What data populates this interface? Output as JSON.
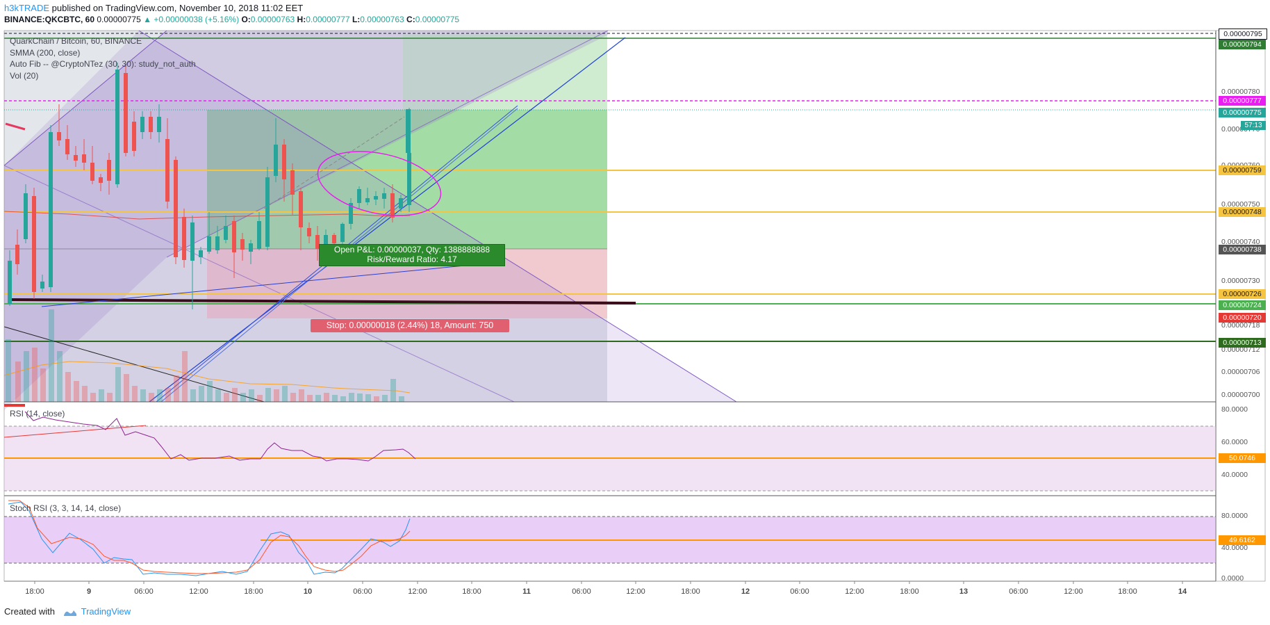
{
  "header": {
    "author": "h3kTRADE",
    "published": " published on TradingView.com, November 10, 2018 11:02 EET",
    "symbol": "BINANCE:QKCBTC, 60",
    "last": "0.00000775",
    "change": "▲ +0.00000038 (+5.16%)",
    "o_label": "O:",
    "o": "0.00000763",
    "h_label": "H:",
    "h": "0.00000777",
    "l_label": "L:",
    "l": "0.00000763",
    "c_label": "C:",
    "c": "0.00000775"
  },
  "legend": {
    "main": "QuarkChain / Bitcoin, 60, BINANCE",
    "smma": "SMMA (200, close)",
    "autofib": "Auto Fib -- @CryptoNTez (30, 30): study_not_auth",
    "vol": "Vol (20)",
    "rsi": "RSI (14, close)",
    "stoch": "Stoch RSI (3, 3, 14, 14, close)"
  },
  "position": {
    "pnl": "Open P&L: 0.00000037, Qty: 1388888888",
    "rr": "Risk/Reward Ratio: 4.17",
    "stop": "Stop: 0.00000018 (2.44%) 18, Amount: 750"
  },
  "price_axis": {
    "ticks": [
      "0.00000780",
      "0.00000770",
      "0.00000760",
      "0.00000750",
      "0.00000740",
      "0.00000730",
      "0.00000718",
      "0.00000712",
      "0.00000706",
      "0.00000700"
    ],
    "tags": [
      {
        "label": "0.00000795",
        "bg": "#ffffff",
        "fg": "#131722"
      },
      {
        "label": "0.00000794",
        "bg": "#2e7d32",
        "fg": "#ffffff"
      },
      {
        "label": "0.00000777",
        "bg": "#e91ef0",
        "fg": "#ffffff"
      },
      {
        "label": "0.00000775",
        "bg": "#26a69a",
        "fg": "#ffffff"
      },
      {
        "label": "0.00000759",
        "bg": "#f5c542",
        "fg": "#131722"
      },
      {
        "label": "0.00000748",
        "bg": "#f5c542",
        "fg": "#131722"
      },
      {
        "label": "0.00000738",
        "bg": "#555555",
        "fg": "#ffffff"
      },
      {
        "label": "0.00000726",
        "bg": "#f5c542",
        "fg": "#131722"
      },
      {
        "label": "0.00000724",
        "bg": "#4caf50",
        "fg": "#ffffff"
      },
      {
        "label": "0.00000720",
        "bg": "#e53935",
        "fg": "#ffffff"
      },
      {
        "label": "0.00000713",
        "bg": "#2e6b1f",
        "fg": "#ffffff"
      }
    ],
    "countdown": "57:13"
  },
  "rsi_axis": {
    "ticks": [
      "80.0000",
      "60.0000",
      "40.0000"
    ],
    "value": "50.0746"
  },
  "stoch_axis": {
    "ticks": [
      "80.0000",
      "40.0000",
      "0.0000"
    ],
    "value": "49.6162"
  },
  "time_axis": [
    "18:00",
    "9",
    "06:00",
    "12:00",
    "18:00",
    "10",
    "06:00",
    "12:00",
    "18:00",
    "11",
    "06:00",
    "12:00",
    "18:00",
    "12",
    "06:00",
    "12:00",
    "18:00",
    "13",
    "06:00",
    "12:00",
    "18:00",
    "14"
  ],
  "footer": {
    "created": "Created with",
    "brand": "TradingView"
  },
  "colors": {
    "bull": "#26a69a",
    "bear": "#ef5350",
    "fib_yellow": "#f5c542",
    "magenta": "#e91ef0",
    "channel": "#7e57c2",
    "target_zone": "#8fd88f",
    "stop_zone": "#f8b7bd"
  }
}
